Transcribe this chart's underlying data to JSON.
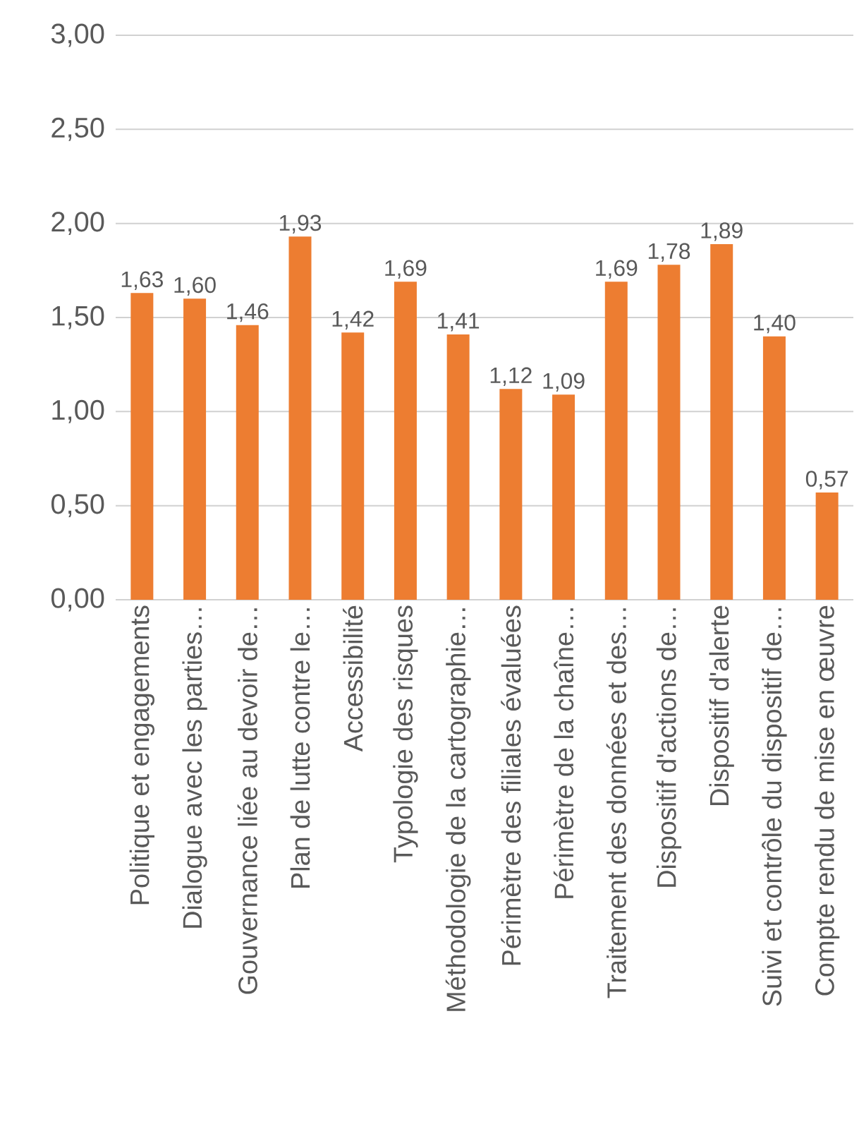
{
  "chart_data": {
    "type": "bar",
    "categories": [
      "Politique et engagements",
      "Dialogue avec les parties…",
      "Gouvernance liée au devoir de…",
      "Plan de lutte contre le…",
      "Accessibilité",
      "Typologie des risques",
      "Méthodologie de la cartographie…",
      "Périmètre des filiales évaluées",
      "Périmètre de la chaîne…",
      "Traitement des données et des…",
      "Dispositif d'actions de…",
      "Dispositif d'alerte",
      "Suivi et contrôle du dispositif de…",
      "Compte rendu de mise en œuvre"
    ],
    "values": [
      1.63,
      1.6,
      1.46,
      1.93,
      1.42,
      1.69,
      1.41,
      1.12,
      1.09,
      1.69,
      1.78,
      1.89,
      1.4,
      0.57
    ],
    "value_labels": [
      "1,63",
      "1,60",
      "1,46",
      "1,93",
      "1,42",
      "1,69",
      "1,41",
      "1,12",
      "1,09",
      "1,69",
      "1,78",
      "1,89",
      "1,40",
      "0,57"
    ],
    "color": "#ed7d31",
    "ylim": [
      0,
      3
    ],
    "yticks": [
      {
        "value": 0,
        "label": "0,00"
      },
      {
        "value": 0.5,
        "label": "0,50"
      },
      {
        "value": 1,
        "label": "1,00"
      },
      {
        "value": 1.5,
        "label": "1,50"
      },
      {
        "value": 2,
        "label": "2,00"
      },
      {
        "value": 2.5,
        "label": "2,50"
      },
      {
        "value": 3,
        "label": "3,00"
      }
    ],
    "grid": "y"
  }
}
